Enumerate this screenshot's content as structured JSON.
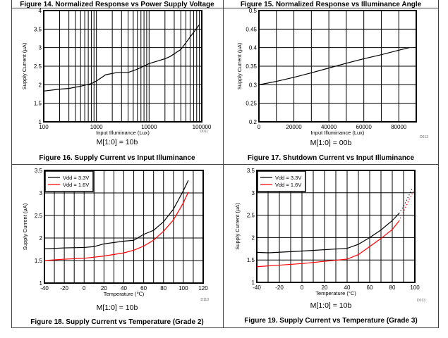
{
  "top_captions": [
    "Figure 14. Normalized Response vs Power Supply Voltage",
    "Figure 15. Normalized Response vs Illuminance Angle"
  ],
  "colors": {
    "vdd_3_3": "#000000",
    "vdd_1_6": "#ff0000",
    "grid": "#000000"
  },
  "chart_data": [
    {
      "type": "line",
      "caption": "Figure 16. Supply Current vs Input Illuminance",
      "mode": "M[1:0] = 10b",
      "code": "D011",
      "xlabel": "Input Illuminance (Lux)",
      "ylabel": "Supply Current (µA)",
      "xscale": "log",
      "xlim": [
        100,
        100000
      ],
      "ylim": [
        1,
        4
      ],
      "xticks": [
        "100",
        "1000",
        "10000",
        "100000"
      ],
      "yticks": [
        "1",
        "1.5",
        "2",
        "2.5",
        "3",
        "3.5",
        "4"
      ],
      "grid": true,
      "series": [
        {
          "x": [
            100,
            200,
            300,
            500,
            800,
            1000,
            1500,
            2500,
            4000,
            6000,
            10000,
            20000,
            25000,
            40000,
            90000
          ],
          "y": [
            1.83,
            1.88,
            1.9,
            1.96,
            2.03,
            2.1,
            2.27,
            2.33,
            2.33,
            2.42,
            2.57,
            2.7,
            2.76,
            2.95,
            3.62
          ]
        }
      ]
    },
    {
      "type": "line",
      "caption": "Figure 17. Shutdown Current vs Input Illuminance",
      "mode": "M[1:0] = 00b",
      "code": "D012",
      "xlabel": "Input Illuminance (Lux)",
      "ylabel": "Supply Current (µA)",
      "xscale": "linear",
      "xlim": [
        0,
        90000
      ],
      "ylim": [
        0.2,
        0.5
      ],
      "xticks": [
        "0",
        "20000",
        "40000",
        "60000",
        "80000"
      ],
      "yticks": [
        "0.2",
        "0.25",
        "0.3",
        "0.35",
        "0.4",
        "0.45",
        "0.5"
      ],
      "grid": true,
      "series": [
        {
          "x": [
            0,
            10000,
            20000,
            30000,
            40000,
            50000,
            60000,
            70000,
            80000,
            86000
          ],
          "y": [
            0.3,
            0.309,
            0.32,
            0.332,
            0.345,
            0.358,
            0.37,
            0.381,
            0.393,
            0.4
          ]
        }
      ]
    },
    {
      "type": "line",
      "caption": "Figure 18. Supply Current vs Temperature (Grade 2)",
      "mode": "M[1:0] = 10b",
      "code": "D110",
      "xlabel": "Temperature (℃)",
      "ylabel": "Supply Current (µA)",
      "xscale": "linear",
      "xlim": [
        -40,
        120
      ],
      "ylim": [
        1,
        3.5
      ],
      "xticks": [
        "-40",
        "-20",
        "0",
        "20",
        "40",
        "60",
        "80",
        "100",
        "120"
      ],
      "yticks": [
        "1",
        "1.5",
        "2",
        "2.5",
        "3",
        "3.5"
      ],
      "grid": true,
      "legend": "top-left",
      "series": [
        {
          "name": "Vdd = 3.3V",
          "x": [
            -40,
            -20,
            0,
            10,
            20,
            40,
            50,
            60,
            70,
            80,
            90,
            100,
            105
          ],
          "y": [
            1.76,
            1.78,
            1.79,
            1.81,
            1.87,
            1.93,
            1.95,
            2.08,
            2.17,
            2.36,
            2.64,
            3.05,
            3.28
          ]
        },
        {
          "name": "Vdd = 1.6V",
          "x": [
            -40,
            -20,
            0,
            20,
            40,
            50,
            60,
            70,
            80,
            90,
            100,
            105
          ],
          "y": [
            1.5,
            1.53,
            1.55,
            1.6,
            1.67,
            1.73,
            1.82,
            1.95,
            2.15,
            2.4,
            2.78,
            3.02
          ]
        }
      ]
    },
    {
      "type": "line",
      "caption": "Figure 19. Supply Current vs Temperature (Grade 3)",
      "mode": "M[1:0] = 10b",
      "code": "D013",
      "xlabel": "Temperature (°C)",
      "ylabel": "Supply Current (µA)",
      "xscale": "linear",
      "xlim": [
        -40,
        100
      ],
      "ylim": [
        1,
        3.5
      ],
      "xticks": [
        "-40",
        "-20",
        "0",
        "20",
        "40",
        "60",
        "80",
        "100"
      ],
      "yticks": [
        "1",
        "1.5",
        "2",
        "2.5",
        "3",
        "3.5"
      ],
      "grid": true,
      "legend": "top-left",
      "series": [
        {
          "name": "Vdd = 3.3V",
          "x": [
            -40,
            -30,
            0,
            40,
            50,
            60,
            70,
            80,
            86
          ],
          "y": [
            1.67,
            1.66,
            1.7,
            1.76,
            1.85,
            2.0,
            2.17,
            2.38,
            2.54
          ],
          "dotted": {
            "x": [
              86,
              90,
              94,
              98
            ],
            "y": [
              2.54,
              2.7,
              2.9,
              3.12
            ]
          }
        },
        {
          "name": "Vdd = 1.6V",
          "x": [
            -40,
            0,
            40,
            50,
            60,
            70,
            80,
            86
          ],
          "y": [
            1.35,
            1.42,
            1.52,
            1.62,
            1.8,
            1.98,
            2.18,
            2.37
          ],
          "dotted": {
            "x": [
              86,
              90,
              94,
              99
            ],
            "y": [
              2.37,
              2.58,
              2.8,
              3.05
            ]
          }
        }
      ]
    }
  ]
}
